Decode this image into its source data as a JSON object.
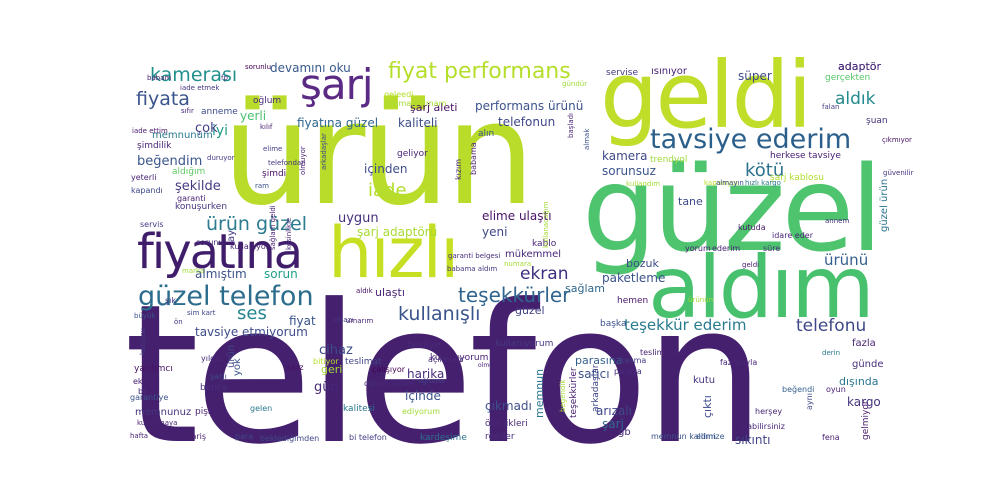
{
  "words": [
    {
      "text": "telefon",
      "color": "#45206f"
    },
    {
      "text": "ürün",
      "color": "#b9dc2b"
    },
    {
      "text": "güzel",
      "color": "#4ec46f"
    },
    {
      "text": "geldi",
      "color": "#c0dd2a"
    },
    {
      "text": "aldım",
      "color": "#47c16e"
    },
    {
      "text": "hızlı",
      "color": "#c7df23"
    },
    {
      "text": "fiyatına",
      "color": "#3f1d6b"
    },
    {
      "text": "tavsiye ederim",
      "color": "#2b5f8b"
    },
    {
      "text": "güzel telefon",
      "color": "#2c6c8d"
    },
    {
      "text": "şarj",
      "color": "#5a2a84"
    },
    {
      "text": "fiyat performans",
      "color": "#b5de2b"
    },
    {
      "text": "teşekkürler",
      "color": "#31658f"
    },
    {
      "text": "kamerası",
      "color": "#21908d"
    },
    {
      "text": "fiyata",
      "color": "#39548c"
    },
    {
      "text": "ürün güzel",
      "color": "#2b7c8e"
    },
    {
      "text": "kullanışlı",
      "color": "#3a548c"
    },
    {
      "text": "iade",
      "color": "#b2dd2d"
    },
    {
      "text": "kötü",
      "color": "#2d728e"
    },
    {
      "text": "aldık",
      "color": "#238a8d"
    },
    {
      "text": "ekran",
      "color": "#3b2f7f"
    },
    {
      "text": "ses",
      "color": "#25858e"
    },
    {
      "text": "telefonu",
      "color": "#3f4889"
    },
    {
      "text": "ürünü",
      "color": "#355f8d"
    },
    {
      "text": "teşekkür ederim",
      "color": "#297b8e"
    },
    {
      "text": "devamını oku",
      "color": "#38598c"
    },
    {
      "text": "şarj aleti",
      "color": "#471063"
    },
    {
      "text": "performans ürünü",
      "color": "#3b528b"
    },
    {
      "text": "kaliteli",
      "color": "#3d4e8a"
    },
    {
      "text": "fiyatına güzel",
      "color": "#31678e"
    },
    {
      "text": "telefonun",
      "color": "#3f4788"
    },
    {
      "text": "iyi",
      "color": "#1fa088"
    },
    {
      "text": "beğendim",
      "color": "#39558c"
    },
    {
      "text": "çok",
      "color": "#424086"
    },
    {
      "text": "memnunum",
      "color": "#2a788e"
    },
    {
      "text": "şekilde",
      "color": "#453882"
    },
    {
      "text": "yerli",
      "color": "#4ac16d"
    },
    {
      "text": "içinden",
      "color": "#3e4c8a"
    },
    {
      "text": "kamera",
      "color": "#3e4989"
    },
    {
      "text": "sorunsuz",
      "color": "#3a548c"
    },
    {
      "text": "uygun",
      "color": "#472f7d"
    },
    {
      "text": "elime ulaştı",
      "color": "#471365"
    },
    {
      "text": "şarj adaptörü",
      "color": "#a8db34"
    },
    {
      "text": "yeni",
      "color": "#3f4788"
    },
    {
      "text": "almıştım",
      "color": "#3b528b"
    },
    {
      "text": "sorun",
      "color": "#1fa088"
    },
    {
      "text": "paketleme",
      "color": "#3b528b"
    },
    {
      "text": "fiyat",
      "color": "#3a538b"
    },
    {
      "text": "ulaştı",
      "color": "#482475"
    },
    {
      "text": "sağlam",
      "color": "#31668e"
    },
    {
      "text": "güzel",
      "color": "#424186"
    },
    {
      "text": "tavsiye etmiyorum",
      "color": "#3e4c8a"
    },
    {
      "text": "cihaz",
      "color": "#3e4a89"
    },
    {
      "text": "harika",
      "color": "#472d7b"
    },
    {
      "text": "satıcı",
      "color": "#3c4f8a"
    },
    {
      "text": "gün",
      "color": "#482878"
    },
    {
      "text": "çıkmadı",
      "color": "#3d4e8a"
    },
    {
      "text": "kargo",
      "color": "#46337f"
    },
    {
      "text": "şarj",
      "color": "#31668e"
    },
    {
      "text": "arızalı",
      "color": "#3f4788"
    },
    {
      "text": "içinde",
      "color": "#3b528b"
    },
    {
      "text": "kutu",
      "color": "#46337f"
    },
    {
      "text": "adaptör",
      "color": "#482979"
    },
    {
      "text": "süper",
      "color": "#3e4989"
    },
    {
      "text": "bozuk",
      "color": "#3e4c8a"
    },
    {
      "text": "geri",
      "color": "#a5db36"
    },
    {
      "text": "hediye",
      "color": "#482878"
    },
    {
      "text": "teslimat",
      "color": "#414487"
    },
    {
      "text": "memnun",
      "color": "#2a788e"
    },
    {
      "text": "parasına",
      "color": "#355f8d"
    },
    {
      "text": "sıkıntı",
      "color": "#414487"
    },
    {
      "text": "dışında",
      "color": "#2a778e"
    },
    {
      "text": "fazla",
      "color": "#482576"
    },
    {
      "text": "günde",
      "color": "#472f7d"
    },
    {
      "text": "çıktı",
      "color": "#3e4989"
    },
    {
      "text": "tane",
      "color": "#3e4a89"
    },
    {
      "text": "gb",
      "color": "#472c7a"
    },
    {
      "text": "ısınıyor",
      "color": "#482475"
    },
    {
      "text": "servise",
      "color": "#443983"
    },
    {
      "text": "kullanıyorum",
      "color": "#482173"
    },
    {
      "text": "yok",
      "color": "#3b528b"
    },
    {
      "text": "mükemmel",
      "color": "#482677"
    },
    {
      "text": "kablo",
      "color": "#482576"
    },
    {
      "text": "hemen",
      "color": "#48186a"
    },
    {
      "text": "başka",
      "color": "#3b528b"
    },
    {
      "text": "herkese tavsiye",
      "color": "#482173"
    },
    {
      "text": "şarj kablosu",
      "color": "#b0dd2f"
    },
    {
      "text": "trendyol",
      "color": "#a0da39"
    },
    {
      "text": "alın",
      "color": "#3b528b"
    },
    {
      "text": "geliyor",
      "color": "#482475"
    },
    {
      "text": "gerçekten",
      "color": "#56c667"
    },
    {
      "text": "şuan",
      "color": "#46337f"
    },
    {
      "text": "güzel ürün",
      "color": "#2b758e"
    },
    {
      "text": "oğlum",
      "color": "#482979"
    },
    {
      "text": "anneme",
      "color": "#3e4c8a"
    },
    {
      "text": "şimdilik",
      "color": "#482677"
    },
    {
      "text": "aldığım",
      "color": "#5dc863"
    },
    {
      "text": "konuşurken",
      "color": "#46337f"
    },
    {
      "text": "ay",
      "color": "#453781"
    },
    {
      "text": "ürün",
      "color": "#3f4889"
    },
    {
      "text": "teşekkürler",
      "color": "#482173"
    },
    {
      "text": "kullanıyorum",
      "color": "#443983"
    },
    {
      "text": "teslim aldım",
      "color": "#482475"
    },
    {
      "text": "kasma",
      "color": "#433e85"
    },
    {
      "text": "fazlasıyla",
      "color": "#482878"
    },
    {
      "text": "paraya",
      "color": "#472d7b"
    },
    {
      "text": "herşey",
      "color": "#482677"
    },
    {
      "text": "bence",
      "color": "#472f7d"
    },
    {
      "text": "yardımcı",
      "color": "#471365"
    },
    {
      "text": "pişman",
      "color": "#482173"
    },
    {
      "text": "açılmıyor",
      "color": "#472c7a"
    },
    {
      "text": "oğluma",
      "color": "#414487"
    },
    {
      "text": "kalitesi",
      "color": "#2a788e"
    },
    {
      "text": "ediyorum",
      "color": "#a0da39"
    },
    {
      "text": "özellikleri",
      "color": "#482878"
    },
    {
      "text": "reeder",
      "color": "#472d7b"
    },
    {
      "text": "kardeşime",
      "color": "#2d708e"
    },
    {
      "text": "bi telefon",
      "color": "#433e85"
    },
    {
      "text": "beklediğimden",
      "color": "#3f4788"
    },
    {
      "text": "memnun kaldım",
      "color": "#3b528b"
    },
    {
      "text": "elimize",
      "color": "#38598c"
    },
    {
      "text": "alabilirsiniz",
      "color": "#482475"
    },
    {
      "text": "fena",
      "color": "#481f70"
    },
    {
      "text": "gelmiyor",
      "color": "#481a6c"
    },
    {
      "text": "aynı",
      "color": "#3e4989"
    },
    {
      "text": "beğendi",
      "color": "#355f8d"
    },
    {
      "text": "oyun",
      "color": "#482173"
    },
    {
      "text": "derin",
      "color": "#2a788e"
    },
    {
      "text": "memnunuz",
      "color": "#46337f"
    },
    {
      "text": "bi",
      "color": "#472f7d"
    },
    {
      "text": "garantiye",
      "color": "#3b528b"
    },
    {
      "text": "ekranı",
      "color": "#482173"
    },
    {
      "text": "şarjı",
      "color": "#3e4a89"
    },
    {
      "text": "yıldız",
      "color": "#472c7a"
    },
    {
      "text": "kablosu",
      "color": "#453882"
    },
    {
      "text": "hafta",
      "color": "#482576"
    },
    {
      "text": "kullanmaya",
      "color": "#482475"
    },
    {
      "text": "sipariş",
      "color": "#481f70"
    },
    {
      "text": "para",
      "color": "#3f4788"
    },
    {
      "text": "gelen",
      "color": "#2a788e"
    },
    {
      "text": "oğlum aldım",
      "color": "#472d7b"
    },
    {
      "text": "çalışıyor",
      "color": "#440154"
    },
    {
      "text": "şarz",
      "color": "#471063"
    },
    {
      "text": "bitiyor",
      "color": "#b8de29"
    },
    {
      "text": "olmuyor",
      "color": "#482173"
    },
    {
      "text": "begendik",
      "color": "#a5db36"
    },
    {
      "text": "arkadaşlar",
      "color": "#3f4788"
    },
    {
      "text": "şık",
      "color": "#443983"
    },
    {
      "text": "sağlam geldi",
      "color": "#482173"
    },
    {
      "text": "kesinlikle",
      "color": "#482677"
    },
    {
      "text": "garanti belgesi",
      "color": "#472f7d"
    },
    {
      "text": "babama aldım",
      "color": "#453882"
    },
    {
      "text": "numara",
      "color": "#a8db34"
    },
    {
      "text": "aldık",
      "color": "#471365"
    },
    {
      "text": "umarım",
      "color": "#482576"
    },
    {
      "text": "cihazı",
      "color": "#453882"
    },
    {
      "text": "büyük",
      "color": "#3b528b"
    },
    {
      "text": "ön",
      "color": "#46337f"
    },
    {
      "text": "sim kart",
      "color": "#414487"
    },
    {
      "text": "marka",
      "color": "#a2da37"
    },
    {
      "text": "kullanıyor",
      "color": "#482576"
    },
    {
      "text": "sorunu",
      "color": "#472d7b"
    },
    {
      "text": "servis",
      "color": "#443983"
    },
    {
      "text": "kapandı",
      "color": "#3f4788"
    },
    {
      "text": "garanti",
      "color": "#482173"
    },
    {
      "text": "yeterli",
      "color": "#482677"
    },
    {
      "text": "iade ettim",
      "color": "#481a6c"
    },
    {
      "text": "duruyor",
      "color": "#453781"
    },
    {
      "text": "telefondan",
      "color": "#46337f"
    },
    {
      "text": "şimdi",
      "color": "#471063"
    },
    {
      "text": "ram",
      "color": "#3b528b"
    },
    {
      "text": "elime",
      "color": "#433e85"
    },
    {
      "text": "kılıf",
      "color": "#481f70"
    },
    {
      "text": "sorunlu",
      "color": "#440154"
    },
    {
      "text": "fp",
      "color": "#472f7d"
    },
    {
      "text": "babam",
      "color": "#482173"
    },
    {
      "text": "iade etmek",
      "color": "#453882"
    },
    {
      "text": "sıfır",
      "color": "#482878"
    },
    {
      "text": "pişman olmam",
      "color": "#a8db34"
    },
    {
      "text": "geleedi",
      "color": "#b8de29"
    },
    {
      "text": "gündür",
      "color": "#a0da39"
    },
    {
      "text": "kızım",
      "color": "#482677"
    },
    {
      "text": "babama",
      "color": "#481a6c"
    },
    {
      "text": "başladı",
      "color": "#482878"
    },
    {
      "text": "almak",
      "color": "#3b528b"
    },
    {
      "text": "kullanacağım",
      "color": "#a5db36"
    },
    {
      "text": "kullandım",
      "color": "#a5db36"
    },
    {
      "text": "kapanıyor",
      "color": "#b8de29"
    },
    {
      "text": "almayın",
      "color": "#3e4c8a"
    },
    {
      "text": "hızlı kargo",
      "color": "#2a788e"
    },
    {
      "text": "yorum",
      "color": "#482173"
    },
    {
      "text": "ederim",
      "color": "#482576"
    },
    {
      "text": "süre",
      "color": "#472d7b"
    },
    {
      "text": "kutuda",
      "color": "#48186a"
    },
    {
      "text": "idare eder",
      "color": "#482677"
    },
    {
      "text": "geldi",
      "color": "#482173"
    },
    {
      "text": "annem",
      "color": "#472f7d"
    },
    {
      "text": "ürünün",
      "color": "#a2da37"
    },
    {
      "text": "güvenilir",
      "color": "#46337f"
    },
    {
      "text": "çıkmıyor",
      "color": "#471365"
    },
    {
      "text": "falan",
      "color": "#433e85"
    },
    {
      "text": "kendine",
      "color": "#482576"
    },
    {
      "text": "güzeldi",
      "color": "#a5db36"
    },
    {
      "text": "görüntülü",
      "color": "#481a6c"
    },
    {
      "text": "kulaklık",
      "color": "#482173"
    },
    {
      "text": "dolmuyor",
      "color": "#b8de29"
    },
    {
      "text": "şarjda",
      "color": "#3e4989"
    },
    {
      "text": "sağlam geldi",
      "color": "#482576"
    }
  ]
}
